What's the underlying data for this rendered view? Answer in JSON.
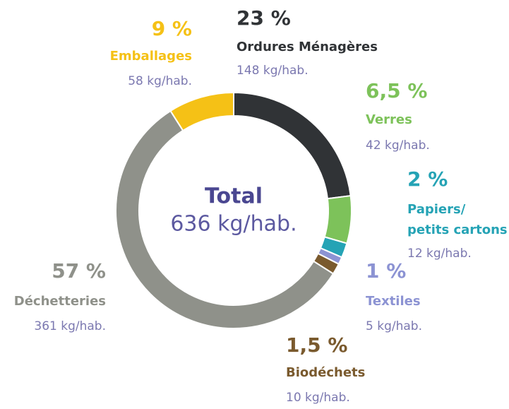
{
  "chart_data": {
    "type": "donut",
    "center_title": "Total",
    "center_subtitle": "636 kg/hab.",
    "categories": [
      "Ordures Ménagères",
      "Verres",
      "Papiers/\npetits cartons",
      "Textiles",
      "Biodéchets",
      "Déchetteries",
      "Emballages"
    ],
    "values": [
      23,
      6.5,
      2,
      1,
      1.5,
      57,
      9
    ],
    "value_labels": [
      "23 %",
      "6,5 %",
      "2 %",
      "1 %",
      "1,5 %",
      "57 %",
      "9 %"
    ],
    "amount_labels": [
      "148 kg/hab.",
      "42 kg/hab.",
      "12 kg/hab.",
      "5 kg/hab.",
      "10 kg/hab.",
      "361 kg/hab.",
      "58 kg/hab."
    ],
    "colors": [
      "#303336",
      "#7dc25a",
      "#25a3b5",
      "#8c93d3",
      "#7a5a2e",
      "#8f918a",
      "#f5c116"
    ],
    "label_colors": [
      "#303336",
      "#7dc25a",
      "#25a3b5",
      "#8c93d3",
      "#7a5a2e",
      "#8f918a",
      "#f5c116"
    ]
  }
}
